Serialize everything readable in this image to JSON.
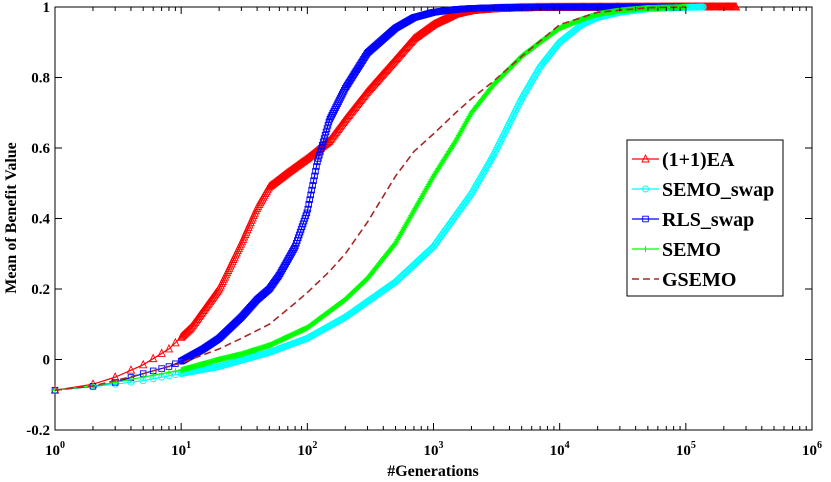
{
  "chart_data": {
    "type": "line",
    "title": "",
    "xlabel": "#Generations",
    "ylabel": "Mean of Benefit Value",
    "xscale": "log",
    "xlim": [
      1,
      1000000
    ],
    "ylim": [
      -0.2,
      1
    ],
    "grid": false,
    "legend_position": "right-middle",
    "x_ticks": [
      {
        "base": "10",
        "exp": "0",
        "value": 1
      },
      {
        "base": "10",
        "exp": "1",
        "value": 10
      },
      {
        "base": "10",
        "exp": "2",
        "value": 100
      },
      {
        "base": "10",
        "exp": "3",
        "value": 1000
      },
      {
        "base": "10",
        "exp": "4",
        "value": 10000
      },
      {
        "base": "10",
        "exp": "5",
        "value": 100000
      },
      {
        "base": "10",
        "exp": "6",
        "value": 1000000
      }
    ],
    "y_ticks": [
      {
        "label": "-0.2",
        "value": -0.2
      },
      {
        "label": "0",
        "value": 0
      },
      {
        "label": "0.2",
        "value": 0.2
      },
      {
        "label": "0.4",
        "value": 0.4
      },
      {
        "label": "0.6",
        "value": 0.6
      },
      {
        "label": "0.8",
        "value": 0.8
      },
      {
        "label": "1",
        "value": 1
      }
    ],
    "series": [
      {
        "name": "(1+1)EA",
        "color": "#ff0000",
        "marker": "triangle",
        "dashed": false,
        "x": [
          1,
          2,
          3,
          5,
          8,
          12,
          20,
          30,
          40,
          50,
          70,
          100,
          150,
          200,
          300,
          500,
          700,
          1000,
          1500,
          2000,
          3000,
          5000,
          10000,
          100000,
          250000
        ],
        "y": [
          -0.087,
          -0.07,
          -0.05,
          -0.015,
          0.03,
          0.09,
          0.2,
          0.33,
          0.43,
          0.49,
          0.53,
          0.57,
          0.62,
          0.68,
          0.76,
          0.85,
          0.91,
          0.95,
          0.98,
          0.99,
          0.995,
          0.998,
          0.999,
          1,
          1
        ]
      },
      {
        "name": "SEMO_swap",
        "color": "#00ffff",
        "marker": "circle",
        "dashed": false,
        "x": [
          1,
          2,
          3,
          5,
          10,
          20,
          50,
          100,
          200,
          500,
          1000,
          2000,
          3000,
          5000,
          7000,
          10000,
          15000,
          20000,
          30000,
          50000,
          100000,
          140000
        ],
        "y": [
          -0.087,
          -0.077,
          -0.07,
          -0.06,
          -0.04,
          -0.02,
          0.02,
          0.06,
          0.12,
          0.22,
          0.32,
          0.47,
          0.58,
          0.74,
          0.83,
          0.9,
          0.95,
          0.97,
          0.985,
          0.995,
          0.999,
          1
        ]
      },
      {
        "name": "RLS_swap",
        "color": "#0000ff",
        "marker": "square",
        "dashed": false,
        "x": [
          1,
          2,
          3,
          5,
          8,
          10,
          15,
          20,
          30,
          40,
          50,
          60,
          80,
          100,
          120,
          150,
          200,
          300,
          500,
          700,
          1000,
          1500,
          2000,
          3000,
          5000,
          10000,
          50000,
          90000
        ],
        "y": [
          -0.087,
          -0.076,
          -0.065,
          -0.04,
          -0.02,
          -0.005,
          0.03,
          0.06,
          0.12,
          0.17,
          0.2,
          0.24,
          0.32,
          0.42,
          0.56,
          0.68,
          0.77,
          0.87,
          0.94,
          0.97,
          0.985,
          0.993,
          0.996,
          0.998,
          0.999,
          1,
          1,
          1
        ]
      },
      {
        "name": "SEMO",
        "color": "#00ff00",
        "marker": "plus",
        "dashed": false,
        "x": [
          1,
          2,
          3,
          5,
          10,
          20,
          30,
          50,
          100,
          200,
          300,
          500,
          1000,
          1500,
          2000,
          3000,
          5000,
          7000,
          10000,
          15000,
          20000,
          30000,
          50000,
          100000
        ],
        "y": [
          -0.087,
          -0.075,
          -0.065,
          -0.05,
          -0.03,
          0,
          0.015,
          0.04,
          0.09,
          0.17,
          0.23,
          0.33,
          0.52,
          0.62,
          0.7,
          0.78,
          0.86,
          0.9,
          0.94,
          0.965,
          0.98,
          0.99,
          0.997,
          1
        ]
      },
      {
        "name": "GSEMO",
        "color": "#a52a2a",
        "marker": "none",
        "dashed": true,
        "x": [
          1,
          2,
          3,
          5,
          10,
          20,
          30,
          50,
          80,
          100,
          150,
          200,
          300,
          500,
          700,
          1000,
          1500,
          2000,
          3000,
          5000,
          10000,
          20000,
          50000,
          100000
        ],
        "y": [
          -0.087,
          -0.075,
          -0.06,
          -0.04,
          -0.01,
          0.03,
          0.06,
          0.1,
          0.16,
          0.19,
          0.25,
          0.3,
          0.39,
          0.52,
          0.59,
          0.64,
          0.7,
          0.74,
          0.79,
          0.86,
          0.95,
          0.985,
          0.998,
          1
        ]
      }
    ]
  }
}
